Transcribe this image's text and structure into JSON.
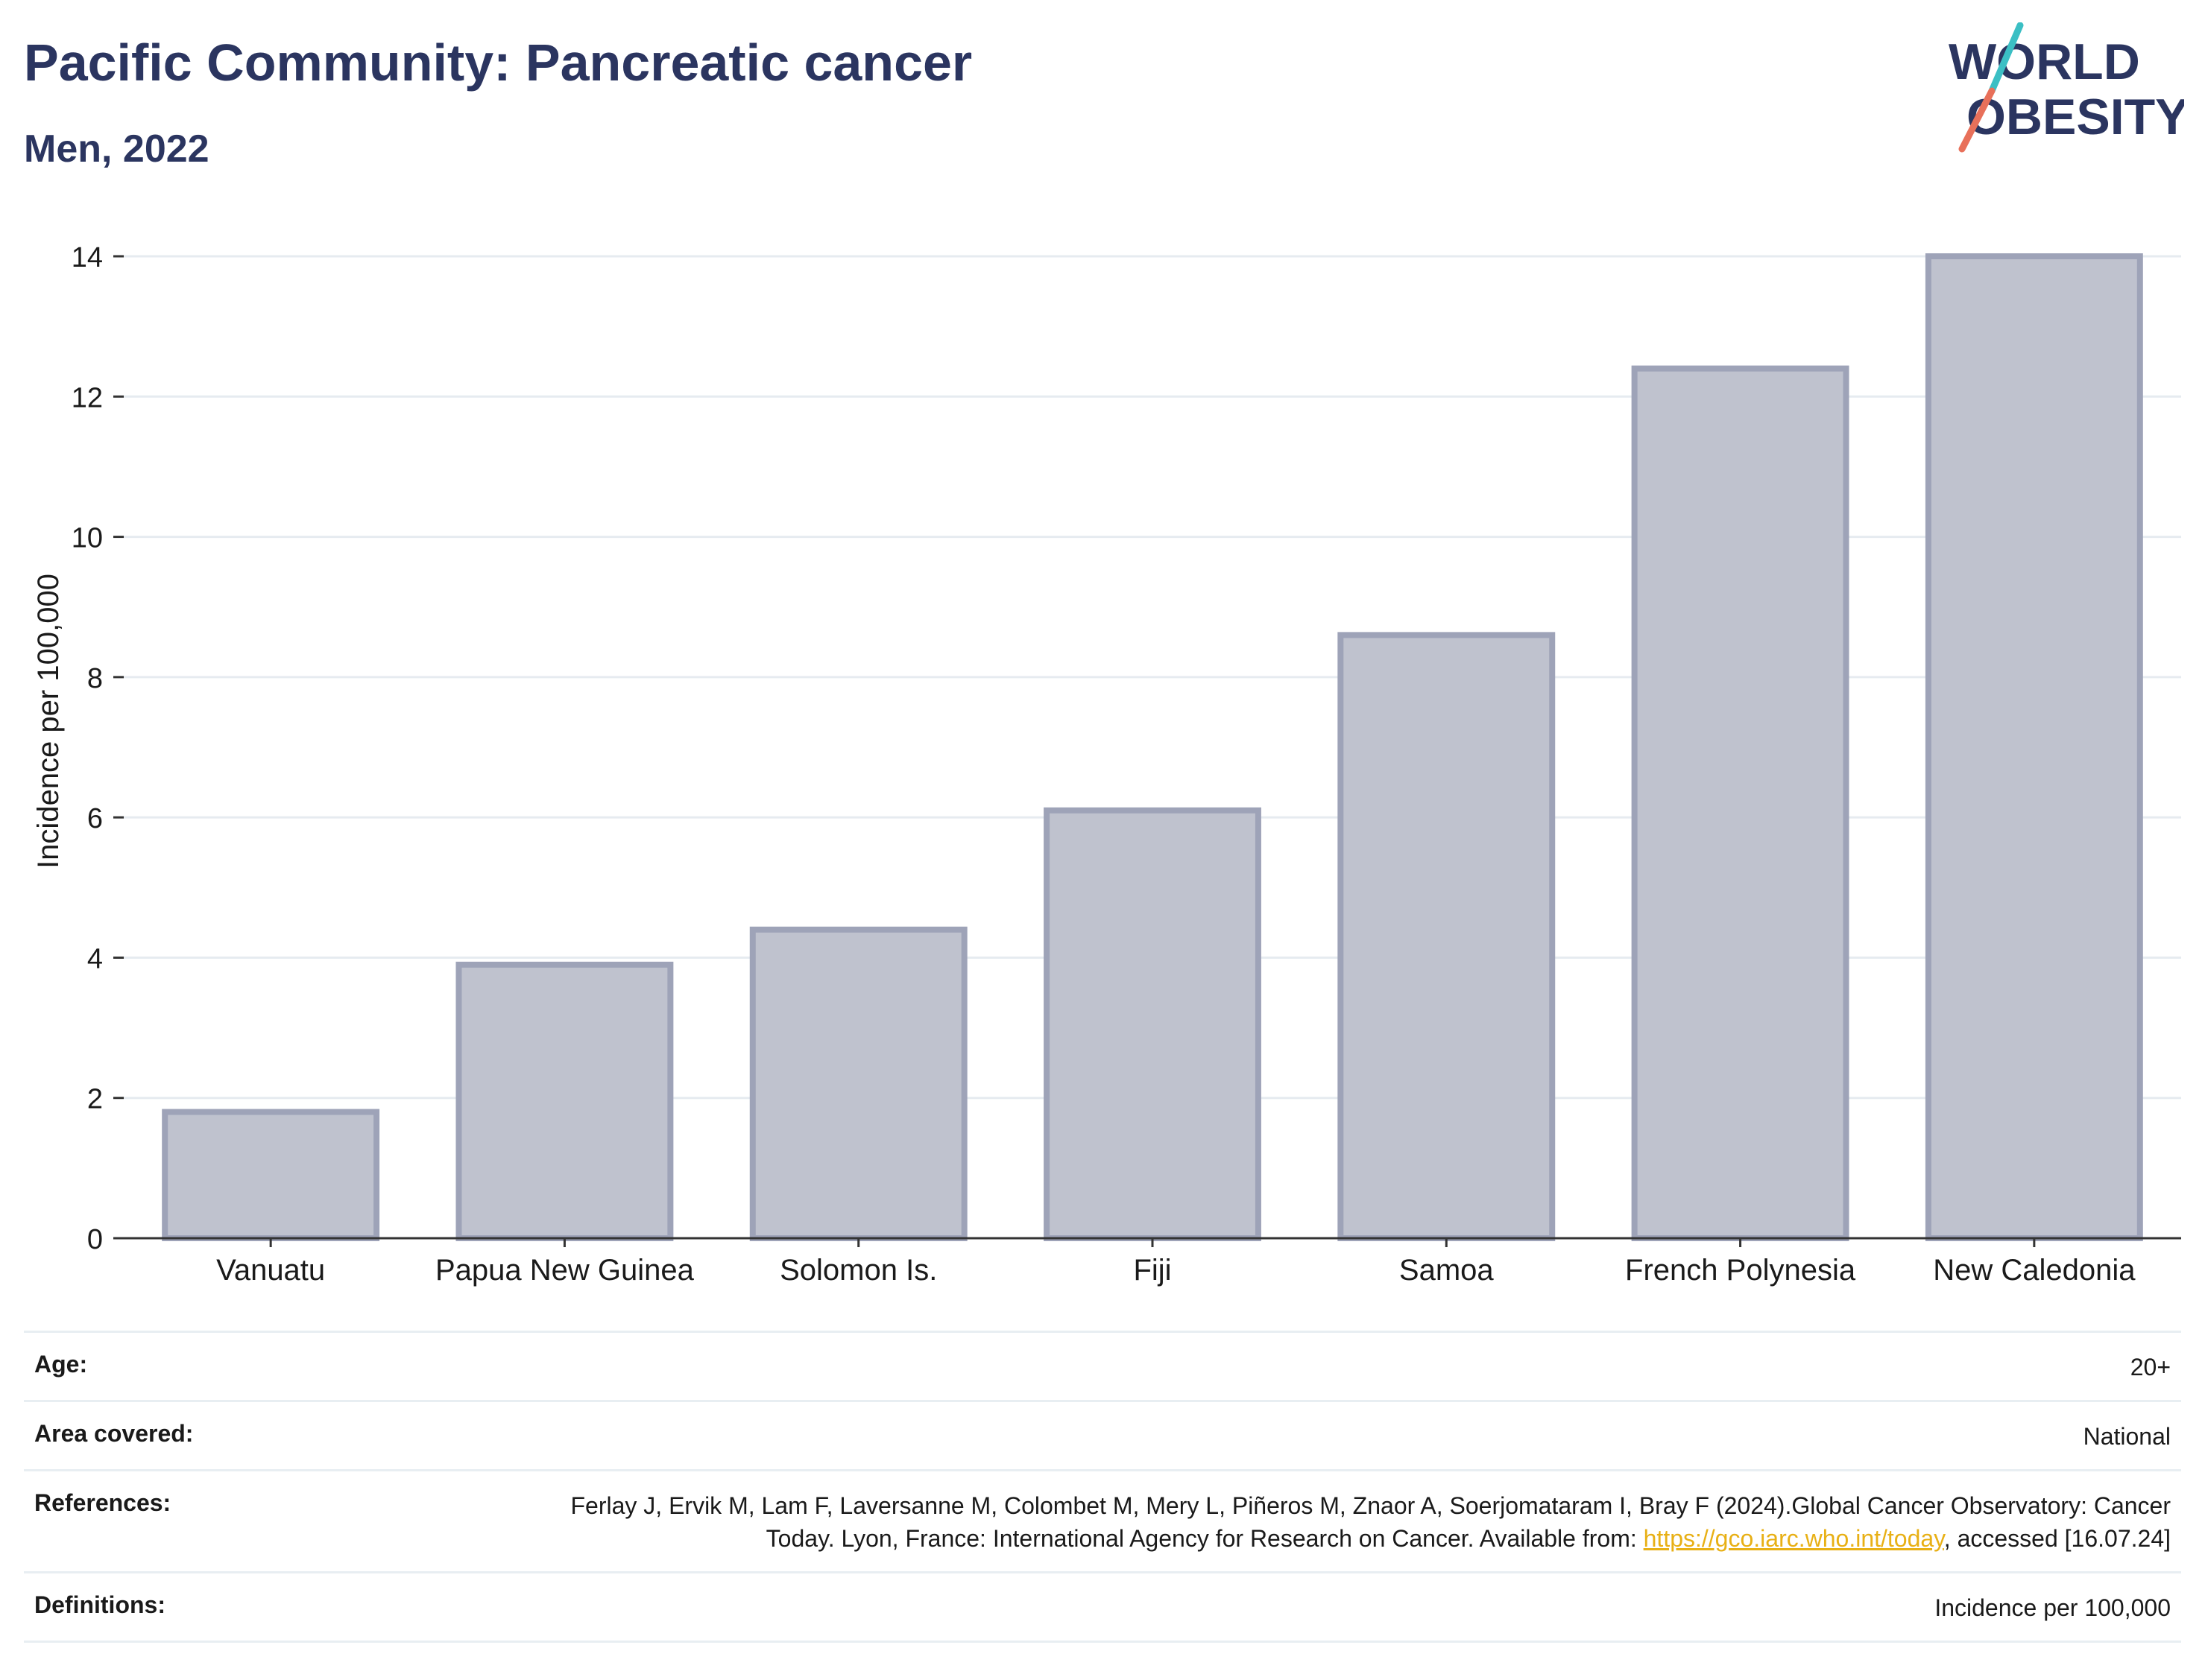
{
  "header": {
    "title": "Pacific Community: Pancreatic cancer",
    "subtitle": "Men, 2022"
  },
  "logo": {
    "line1": "WORLD",
    "line2": "OBESITY",
    "colors": {
      "text": "#2b3560",
      "slash_top": "#3bbfc4",
      "slash_bottom": "#e8705a"
    }
  },
  "chart_data": {
    "type": "bar",
    "categories": [
      "Vanuatu",
      "Papua New Guinea",
      "Solomon Is.",
      "Fiji",
      "Samoa",
      "French Polynesia",
      "New Caledonia"
    ],
    "values": [
      1.8,
      3.9,
      4.4,
      6.1,
      8.6,
      12.4,
      14.0
    ],
    "title": "",
    "xlabel": "",
    "ylabel": "Incidence per 100,000",
    "ylim": [
      0,
      14
    ],
    "yticks": [
      0,
      2,
      4,
      6,
      8,
      10,
      12,
      14
    ],
    "grid": true,
    "bar_fill": "#bfc2ce",
    "bar_stroke": "#9ea3b8"
  },
  "meta": {
    "age_label": "Age:",
    "age_value": "20+",
    "area_label": "Area covered:",
    "area_value": "National",
    "references_label": "References:",
    "references_text_1": "Ferlay J, Ervik M, Lam F, Laversanne M, Colombet M, Mery L, Piñeros M, Znaor A, Soerjomataram I, Bray F (2024).Global Cancer Observatory: Cancer Today. Lyon, France: International Agency for Research on Cancer. Available from: ",
    "references_link": "https://gco.iarc.who.int/today",
    "references_text_2": ", accessed [16.07.24]",
    "definitions_label": "Definitions:",
    "definitions_value": "Incidence per 100,000"
  }
}
